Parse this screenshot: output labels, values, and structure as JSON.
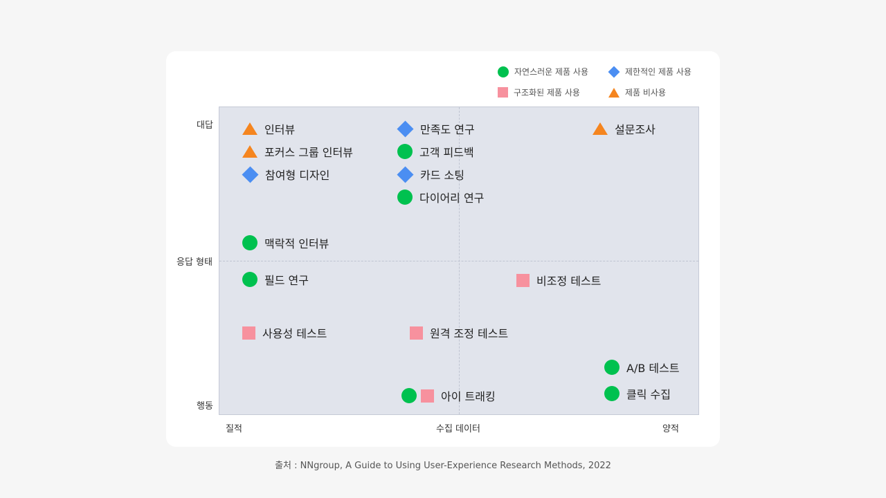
{
  "legend": {
    "natural": "자연스러운 제품 사용",
    "limited": "제한적인 제품 사용",
    "scripted": "구조화된 제품 사용",
    "none": "제품 비사용"
  },
  "y_axis": {
    "top": "대답",
    "middle": "응답 형태",
    "bottom": "행동"
  },
  "x_axis": {
    "left": "질적",
    "middle": "수집 데이터",
    "right": "양적"
  },
  "items": {
    "interview": "인터뷰",
    "focus_group": "포커스 그룹 인터뷰",
    "participatory_design": "참여형 디자인",
    "satisfaction_study": "만족도 연구",
    "customer_feedback": "고객 피드백",
    "card_sorting": "카드 소팅",
    "diary_study": "다이어리 연구",
    "survey": "설문조사",
    "contextual_interview": "맥락적 인터뷰",
    "field_study": "필드 연구",
    "unmoderated_test": "비조정 테스트",
    "usability_test": "사용성 테스트",
    "remote_moderated_test": "원격 조정 테스트",
    "ab_test": "A/B 테스트",
    "clickstream": "클릭 수집",
    "eye_tracking": "아이 트래킹"
  },
  "source": "출처 : NNgroup, A Guide to Using User-Experience Research Methods, 2022",
  "colors": {
    "natural": "#00c14f",
    "limited": "#4b8ef2",
    "scripted": "#f7919e",
    "none": "#f5851f"
  }
}
